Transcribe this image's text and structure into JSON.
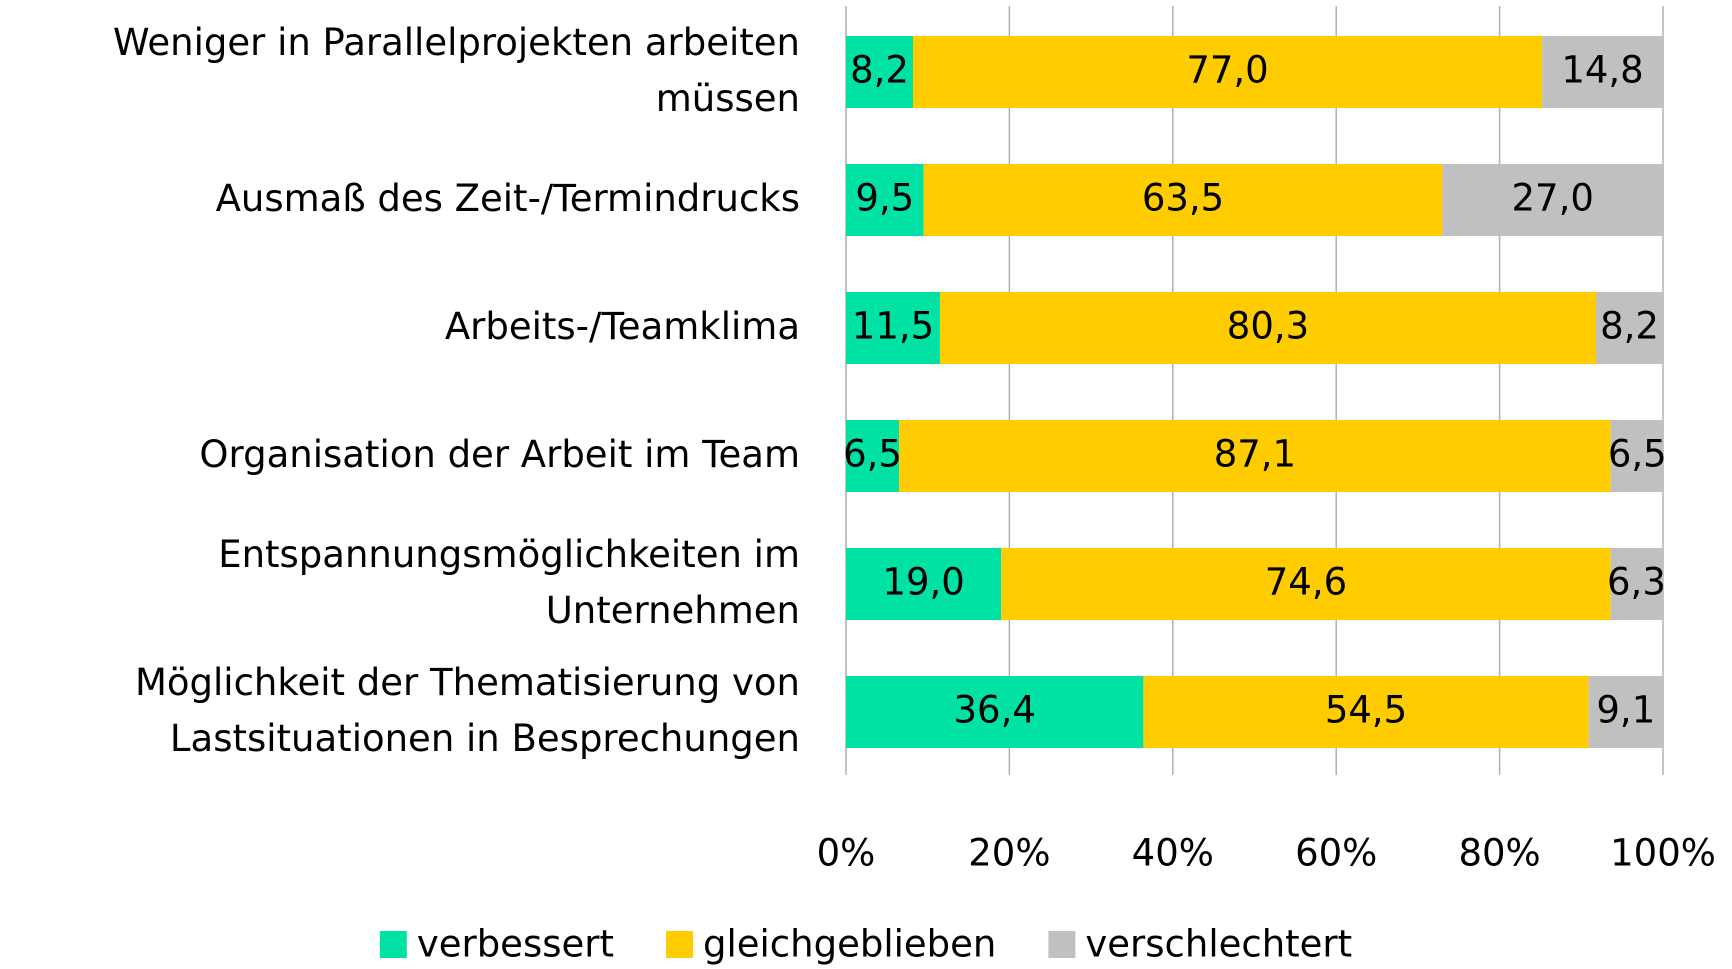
{
  "chart_data": {
    "type": "stacked_bar_horizontal",
    "categories": [
      "Weniger in Parallelprojekten arbeiten müssen",
      "Ausmaß des Zeit-/Termindrucks",
      "Arbeits-/Teamklima",
      "Organisation der Arbeit im Team",
      "Entspannungsmöglichkeiten im Unternehmen",
      "Möglichkeit der Thematisierung von Lastsituationen in Besprechungen"
    ],
    "series": [
      {
        "name": "verbessert",
        "color": "#00e2a4",
        "values": [
          8.2,
          9.5,
          11.5,
          6.5,
          19.0,
          36.4
        ],
        "value_labels": [
          "8,2",
          "9,5",
          "11,5",
          "6,5",
          "19,0",
          "36,4"
        ]
      },
      {
        "name": "gleichgeblieben",
        "color": "#ffcc00",
        "values": [
          77.0,
          63.5,
          80.3,
          87.1,
          74.6,
          54.5
        ],
        "value_labels": [
          "77,0",
          "63,5",
          "80,3",
          "87,1",
          "74,6",
          "54,5"
        ]
      },
      {
        "name": "verschlechtert",
        "color": "#c0c0c0",
        "values": [
          14.8,
          27.0,
          8.2,
          6.5,
          6.3,
          9.1
        ],
        "value_labels": [
          "14,8",
          "27,0",
          "8,2",
          "6,5",
          "6,3",
          "9,1"
        ]
      }
    ],
    "xlim": [
      0,
      100
    ],
    "xticks": [
      {
        "value": 0,
        "label": "0%"
      },
      {
        "value": 20,
        "label": "20%"
      },
      {
        "value": 40,
        "label": "40%"
      },
      {
        "value": 60,
        "label": "60%"
      },
      {
        "value": 80,
        "label": "80%"
      },
      {
        "value": 100,
        "label": "100%"
      }
    ],
    "grid": true,
    "legend": "bottom"
  }
}
